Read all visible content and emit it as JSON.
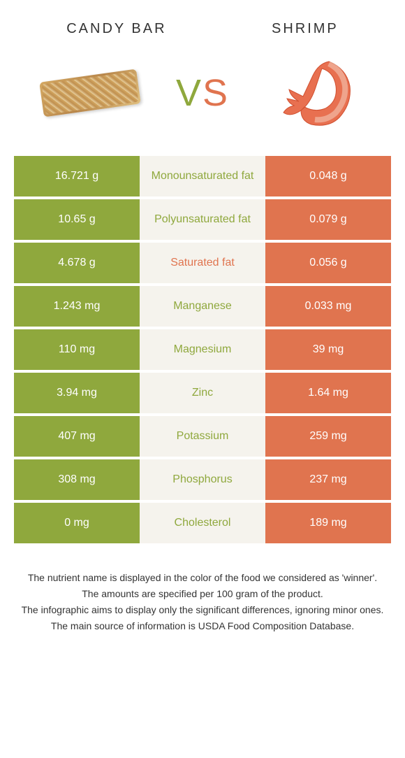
{
  "header": {
    "left_title": "CANDY BAR",
    "right_title": "SHRIMP"
  },
  "vs_label": {
    "v": "V",
    "s": "S"
  },
  "colors": {
    "left": "#8fa83d",
    "right": "#e0744f",
    "middle_bg": "#f5f3ed"
  },
  "nutrients": [
    {
      "left": "16.721 g",
      "label": "Monounsaturated fat",
      "right": "0.048 g",
      "winner": "left"
    },
    {
      "left": "10.65 g",
      "label": "Polyunsaturated fat",
      "right": "0.079 g",
      "winner": "left"
    },
    {
      "left": "4.678 g",
      "label": "Saturated fat",
      "right": "0.056 g",
      "winner": "right"
    },
    {
      "left": "1.243 mg",
      "label": "Manganese",
      "right": "0.033 mg",
      "winner": "left"
    },
    {
      "left": "110 mg",
      "label": "Magnesium",
      "right": "39 mg",
      "winner": "left"
    },
    {
      "left": "3.94 mg",
      "label": "Zinc",
      "right": "1.64 mg",
      "winner": "left"
    },
    {
      "left": "407 mg",
      "label": "Potassium",
      "right": "259 mg",
      "winner": "left"
    },
    {
      "left": "308 mg",
      "label": "Phosphorus",
      "right": "237 mg",
      "winner": "left"
    },
    {
      "left": "0 mg",
      "label": "Cholesterol",
      "right": "189 mg",
      "winner": "left"
    }
  ],
  "footer": {
    "line1": "The nutrient name is displayed in the color of the food we considered as 'winner'.",
    "line2": "The amounts are specified per 100 gram of the product.",
    "line3": "The infographic aims to display only the significant differences, ignoring minor ones.",
    "line4": "The main source of information is USDA Food Composition Database."
  }
}
